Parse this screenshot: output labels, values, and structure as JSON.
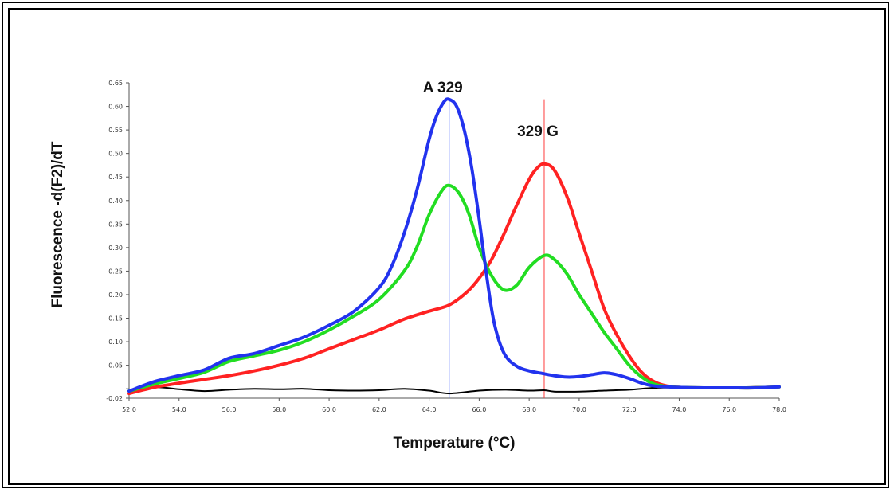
{
  "chart_data": {
    "type": "line",
    "xlabel": "Temperature (°C)",
    "ylabel": "Fluorescence -d(F2)/dT",
    "xlim": [
      52.0,
      78.0
    ],
    "ylim": [
      -0.02,
      0.65
    ],
    "x_ticks": [
      "52.0",
      "54.0",
      "56.0",
      "58.0",
      "60.0",
      "62.0",
      "64.0",
      "66.0",
      "68.0",
      "70.0",
      "72.0",
      "74.0",
      "76.0",
      "78.0"
    ],
    "x_tick_values": [
      52,
      54,
      56,
      58,
      60,
      62,
      64,
      66,
      68,
      70,
      72,
      74,
      76,
      78
    ],
    "y_ticks": [
      "-0.02",
      "",
      "0.05",
      "0.10",
      "0.15",
      "0.20",
      "0.25",
      "0.30",
      "0.35",
      "0.40",
      "0.45",
      "0.50",
      "0.55",
      "0.60",
      "0.65"
    ],
    "y_tick_values": [
      -0.02,
      0.0,
      0.05,
      0.1,
      0.15,
      0.2,
      0.25,
      0.3,
      0.35,
      0.4,
      0.45,
      0.5,
      0.55,
      0.6,
      0.65
    ],
    "grid": false,
    "annotations": [
      {
        "text": "A 329",
        "x": 64.8,
        "y": 0.623
      },
      {
        "text": "329 G",
        "x": 68.6,
        "y": 0.53
      }
    ],
    "vlines": [
      {
        "x": 64.8,
        "color": "#3b5bff"
      },
      {
        "x": 68.6,
        "color": "#ff3b3b"
      }
    ],
    "series": [
      {
        "color": "#000000",
        "x": [
          52,
          53,
          54,
          55,
          56,
          57,
          58,
          59,
          60,
          61,
          62,
          63,
          64,
          64.8,
          66,
          67,
          68,
          68.6,
          69,
          70,
          71,
          72,
          73,
          74,
          75,
          76,
          77,
          78
        ],
        "values": [
          -0.01,
          0.003,
          -0.001,
          -0.005,
          -0.002,
          0.0,
          -0.001,
          0.0,
          -0.003,
          -0.004,
          -0.003,
          0.0,
          -0.004,
          -0.01,
          -0.004,
          -0.002,
          -0.004,
          -0.003,
          -0.006,
          -0.006,
          -0.004,
          -0.002,
          0.002,
          0.003,
          0.003,
          0.003,
          0.004,
          0.005
        ]
      },
      {
        "color": "#ff2222",
        "x": [
          52,
          53,
          54,
          55,
          56,
          57,
          58,
          59,
          60,
          61,
          62,
          63,
          64,
          64.8,
          65.5,
          66,
          66.5,
          67,
          67.5,
          68,
          68.3,
          68.6,
          69,
          69.5,
          70,
          70.5,
          71,
          71.5,
          72,
          72.5,
          73,
          73.5,
          74,
          75,
          76,
          77,
          78
        ],
        "values": [
          -0.01,
          0.003,
          0.012,
          0.02,
          0.028,
          0.038,
          0.05,
          0.065,
          0.085,
          0.105,
          0.125,
          0.148,
          0.165,
          0.178,
          0.205,
          0.235,
          0.275,
          0.33,
          0.39,
          0.445,
          0.468,
          0.478,
          0.465,
          0.41,
          0.33,
          0.25,
          0.17,
          0.115,
          0.07,
          0.035,
          0.015,
          0.006,
          0.003,
          0.002,
          0.002,
          0.002,
          0.004
        ]
      },
      {
        "color": "#22dd22",
        "x": [
          52,
          53,
          54,
          55,
          56,
          57,
          58,
          59,
          60,
          61,
          62,
          63,
          63.5,
          64,
          64.5,
          64.8,
          65.2,
          65.6,
          66,
          66.5,
          67,
          67.5,
          68,
          68.6,
          69,
          69.5,
          70,
          70.5,
          71,
          71.5,
          72,
          72.5,
          73,
          73.5,
          74,
          75,
          76,
          77,
          78
        ],
        "values": [
          -0.005,
          0.01,
          0.022,
          0.035,
          0.058,
          0.07,
          0.082,
          0.1,
          0.125,
          0.155,
          0.19,
          0.25,
          0.3,
          0.37,
          0.42,
          0.432,
          0.415,
          0.37,
          0.3,
          0.24,
          0.21,
          0.22,
          0.258,
          0.283,
          0.275,
          0.245,
          0.2,
          0.16,
          0.12,
          0.085,
          0.05,
          0.025,
          0.01,
          0.005,
          0.003,
          0.002,
          0.002,
          0.002,
          0.004
        ]
      },
      {
        "color": "#2233ee",
        "x": [
          52,
          53,
          54,
          55,
          56,
          57,
          58,
          59,
          60,
          61,
          62,
          62.5,
          63,
          63.5,
          64,
          64.3,
          64.6,
          64.8,
          65.1,
          65.4,
          65.7,
          66,
          66.3,
          66.6,
          67,
          67.5,
          68,
          68.6,
          69,
          69.5,
          70,
          70.5,
          71,
          71.5,
          72,
          72.5,
          73,
          74,
          75,
          76,
          77,
          78
        ],
        "values": [
          -0.005,
          0.015,
          0.028,
          0.04,
          0.065,
          0.075,
          0.092,
          0.11,
          0.135,
          0.165,
          0.215,
          0.26,
          0.33,
          0.42,
          0.53,
          0.58,
          0.61,
          0.615,
          0.6,
          0.55,
          0.47,
          0.36,
          0.24,
          0.14,
          0.075,
          0.048,
          0.038,
          0.032,
          0.028,
          0.025,
          0.026,
          0.03,
          0.034,
          0.03,
          0.022,
          0.012,
          0.006,
          0.003,
          0.002,
          0.002,
          0.002,
          0.004
        ]
      }
    ]
  }
}
